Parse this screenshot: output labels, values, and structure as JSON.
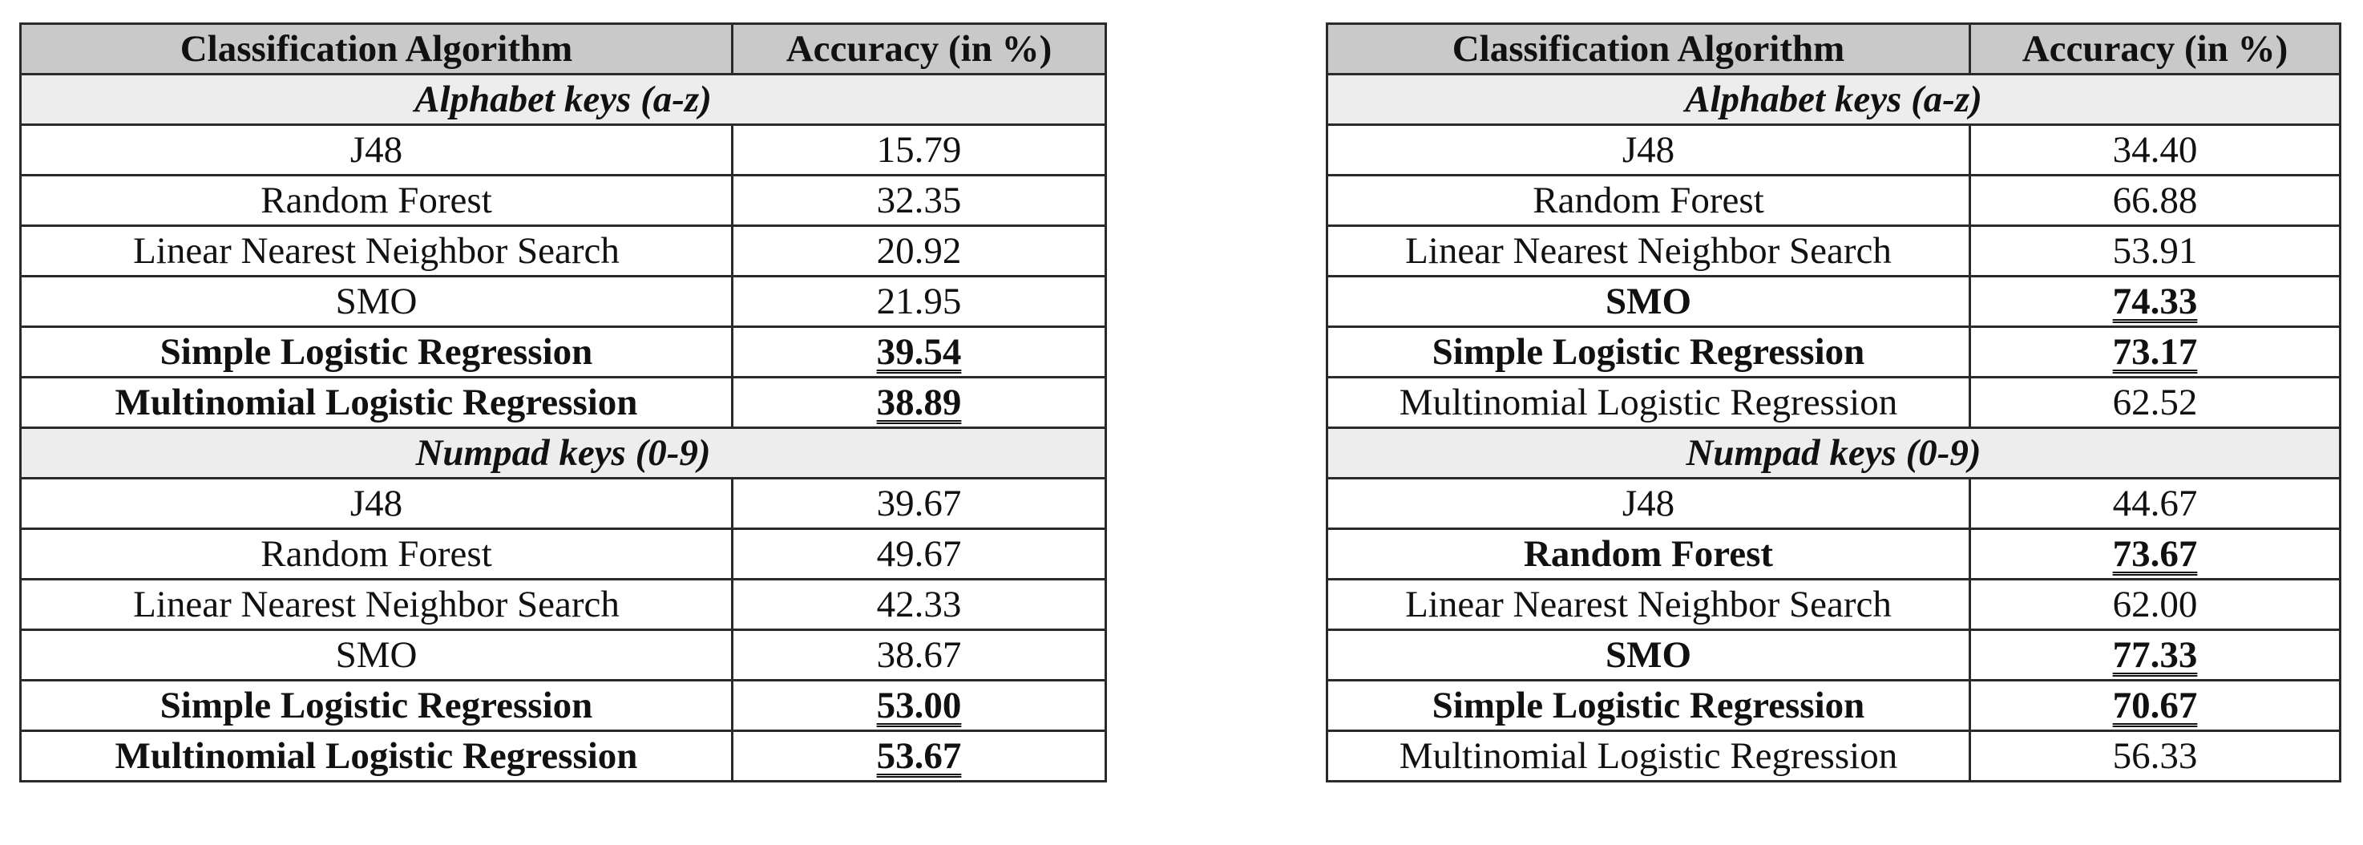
{
  "left_table": {
    "header": {
      "algorithm": "Classification Algorithm",
      "accuracy": "Accuracy (in %)"
    },
    "sections": [
      {
        "title": "Alphabet keys (a-z)",
        "rows": [
          {
            "algorithm": "J48",
            "accuracy": "15.79",
            "best": false
          },
          {
            "algorithm": "Random Forest",
            "accuracy": "32.35",
            "best": false
          },
          {
            "algorithm": "Linear Nearest Neighbor Search",
            "accuracy": "20.92",
            "best": false
          },
          {
            "algorithm": "SMO",
            "accuracy": "21.95",
            "best": false
          },
          {
            "algorithm": "Simple Logistic Regression",
            "accuracy": "39.54",
            "best": true
          },
          {
            "algorithm": "Multinomial Logistic Regression",
            "accuracy": "38.89",
            "best": true
          }
        ]
      },
      {
        "title": "Numpad keys (0-9)",
        "rows": [
          {
            "algorithm": "J48",
            "accuracy": "39.67",
            "best": false
          },
          {
            "algorithm": "Random Forest",
            "accuracy": "49.67",
            "best": false
          },
          {
            "algorithm": "Linear Nearest Neighbor Search",
            "accuracy": "42.33",
            "best": false
          },
          {
            "algorithm": "SMO",
            "accuracy": "38.67",
            "best": false
          },
          {
            "algorithm": "Simple Logistic Regression",
            "accuracy": "53.00",
            "best": true
          },
          {
            "algorithm": "Multinomial Logistic Regression",
            "accuracy": "53.67",
            "best": true
          }
        ]
      }
    ]
  },
  "right_table": {
    "header": {
      "algorithm": "Classification Algorithm",
      "accuracy": "Accuracy (in %)"
    },
    "sections": [
      {
        "title": "Alphabet keys (a-z)",
        "rows": [
          {
            "algorithm": "J48",
            "accuracy": "34.40",
            "best": false
          },
          {
            "algorithm": "Random Forest",
            "accuracy": "66.88",
            "best": false
          },
          {
            "algorithm": "Linear Nearest Neighbor Search",
            "accuracy": "53.91",
            "best": false
          },
          {
            "algorithm": "SMO",
            "accuracy": "74.33",
            "best": true
          },
          {
            "algorithm": "Simple Logistic Regression",
            "accuracy": "73.17",
            "best": true
          },
          {
            "algorithm": "Multinomial Logistic Regression",
            "accuracy": "62.52",
            "best": false
          }
        ]
      },
      {
        "title": "Numpad keys (0-9)",
        "rows": [
          {
            "algorithm": "J48",
            "accuracy": "44.67",
            "best": false
          },
          {
            "algorithm": "Random Forest",
            "accuracy": "73.67",
            "best": true
          },
          {
            "algorithm": "Linear Nearest Neighbor Search",
            "accuracy": "62.00",
            "best": false
          },
          {
            "algorithm": "SMO",
            "accuracy": "77.33",
            "best": true
          },
          {
            "algorithm": "Simple Logistic Regression",
            "accuracy": "70.67",
            "best": true
          },
          {
            "algorithm": "Multinomial Logistic Regression",
            "accuracy": "56.33",
            "best": false
          }
        ]
      }
    ]
  },
  "colors": {
    "header_background": "#c9c9c9",
    "section_background": "#ededed",
    "border": "#2a2a2a",
    "text": "#111111"
  }
}
